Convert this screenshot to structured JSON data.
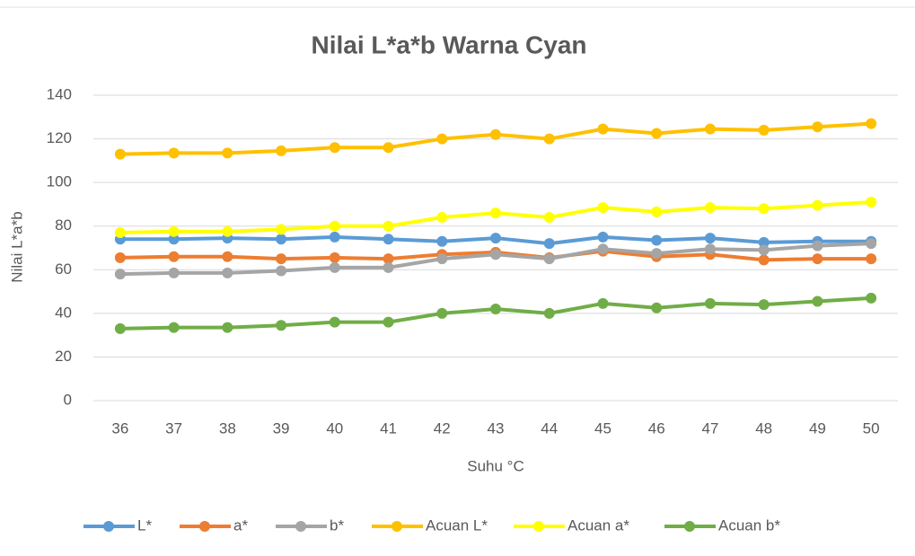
{
  "chart_data": {
    "type": "line",
    "title": "Nilai L*a*b Warna Cyan",
    "x_label": "Suhu °C",
    "y_label": "Nilai L*a*b",
    "categories": [
      "36",
      "37",
      "38",
      "39",
      "40",
      "41",
      "42",
      "43",
      "44",
      "45",
      "46",
      "47",
      "48",
      "49",
      "50"
    ],
    "series": [
      {
        "name": "L*",
        "color": "#5b9bd5",
        "values": [
          74,
          74,
          74.5,
          74,
          75,
          74,
          73,
          74.5,
          72,
          75,
          73.5,
          74.5,
          72.5,
          73,
          73
        ]
      },
      {
        "name": "a*",
        "color": "#ed7d31",
        "values": [
          65.5,
          66,
          66,
          65,
          65.5,
          65,
          67,
          68,
          65.5,
          68.5,
          66,
          67,
          64.5,
          65,
          65
        ]
      },
      {
        "name": "b*",
        "color": "#a5a5a5",
        "values": [
          58,
          58.5,
          58.5,
          59.5,
          61,
          61,
          65,
          67,
          65,
          69.5,
          67.5,
          69.5,
          69,
          71,
          72
        ]
      },
      {
        "name": "Acuan L*",
        "color": "#ffc000",
        "values": [
          113,
          113.5,
          113.5,
          114.5,
          116,
          116,
          120,
          122,
          120,
          124.5,
          122.5,
          124.5,
          124,
          125.5,
          127
        ]
      },
      {
        "name": "Acuan a*",
        "color": "#ffff00",
        "values": [
          77,
          77.5,
          77.5,
          78.5,
          80,
          80,
          84,
          86,
          84,
          88.5,
          86.5,
          88.5,
          88,
          89.5,
          91
        ]
      },
      {
        "name": "Acuan b*",
        "color": "#70ad47",
        "values": [
          33,
          33.5,
          33.5,
          34.5,
          36,
          36,
          40,
          42,
          40,
          44.5,
          42.5,
          44.5,
          44,
          45.5,
          47
        ]
      }
    ],
    "ylim": [
      0,
      140
    ],
    "yticks": [
      0,
      20,
      40,
      60,
      80,
      100,
      120,
      140
    ],
    "grid": true,
    "legend": "bottom"
  }
}
